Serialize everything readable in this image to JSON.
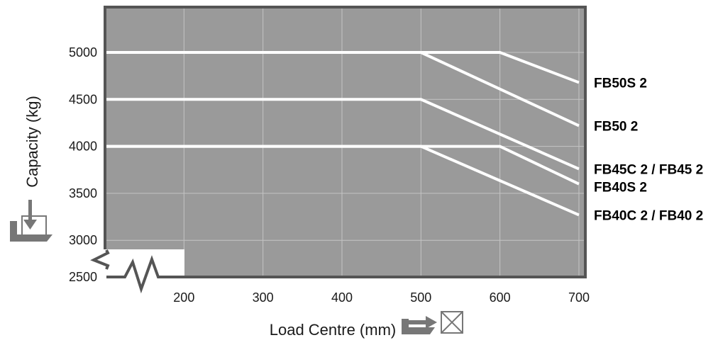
{
  "chart_data": {
    "type": "line",
    "xlabel": "Load Centre (mm)",
    "ylabel": "Capacity (kg)",
    "x_ticks": [
      "200",
      "300",
      "400",
      "500",
      "600",
      "700"
    ],
    "y_ticks": [
      "2500",
      "3000",
      "3500",
      "4000",
      "4500",
      "5000"
    ],
    "xlim": [
      100,
      700
    ],
    "ylim": [
      2500,
      5500
    ],
    "y_axis_break": true,
    "grid": true,
    "colors": {
      "plot_background": "#9a9a9a",
      "frame": "#555555",
      "series_line": "#ffffff",
      "grid_line": "#c4c4c4"
    },
    "series": [
      {
        "name": "FB50S 2",
        "x": [
          100,
          600,
          700
        ],
        "y": [
          5000,
          5000,
          4680
        ]
      },
      {
        "name": "FB50 2",
        "x": [
          100,
          500,
          700
        ],
        "y": [
          5000,
          5000,
          4220
        ]
      },
      {
        "name": "FB45C 2 / FB45 2",
        "x": [
          100,
          500,
          700
        ],
        "y": [
          4500,
          4500,
          3760
        ]
      },
      {
        "name": "FB40S 2",
        "x": [
          100,
          600,
          700
        ],
        "y": [
          4000,
          4000,
          3600
        ]
      },
      {
        "name": "FB40C 2 / FB40 2",
        "x": [
          100,
          500,
          700
        ],
        "y": [
          4000,
          4000,
          3270
        ]
      }
    ],
    "icons": [
      "capacity-load-icon",
      "load-centre-icon"
    ]
  }
}
